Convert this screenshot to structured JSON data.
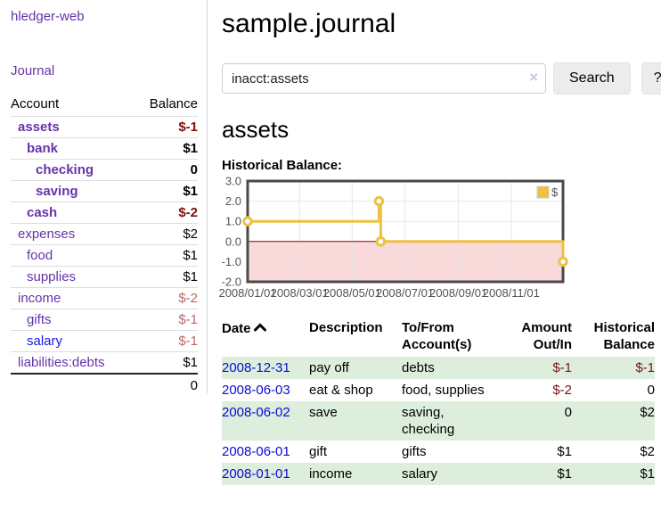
{
  "sidebar": {
    "brand": "hledger-web",
    "nav_journal": "Journal",
    "accounts_table": {
      "headers": {
        "account": "Account",
        "balance": "Balance"
      },
      "rows": [
        {
          "name": "assets",
          "indent": 1,
          "balance": "$-1",
          "bold": true,
          "balance_class": "neg-strong"
        },
        {
          "name": "bank",
          "indent": 2,
          "balance": "$1",
          "bold": true,
          "balance_class": ""
        },
        {
          "name": "checking",
          "indent": 3,
          "balance": "0",
          "bold": true,
          "balance_class": ""
        },
        {
          "name": "saving",
          "indent": 3,
          "balance": "$1",
          "bold": true,
          "balance_class": ""
        },
        {
          "name": "cash",
          "indent": 2,
          "balance": "$-2",
          "bold": true,
          "balance_class": "neg-strong"
        },
        {
          "name": "expenses",
          "indent": 1,
          "balance": "$2",
          "bold": false,
          "balance_class": ""
        },
        {
          "name": "food",
          "indent": 2,
          "balance": "$1",
          "bold": false,
          "balance_class": ""
        },
        {
          "name": "supplies",
          "indent": 2,
          "balance": "$1",
          "bold": false,
          "balance_class": ""
        },
        {
          "name": "income",
          "indent": 1,
          "balance": "$-2",
          "bold": false,
          "balance_class": "neg-faint"
        },
        {
          "name": "gifts",
          "indent": 2,
          "balance": "$-1",
          "bold": false,
          "balance_class": "neg-faint"
        },
        {
          "name": "salary",
          "indent": 2,
          "balance": "$-1",
          "bold": false,
          "balance_class": "neg-faint",
          "link_color": "blue"
        },
        {
          "name": "liabilities:debts",
          "indent": 1,
          "balance": "$1",
          "bold": false,
          "balance_class": ""
        }
      ],
      "total": "0"
    }
  },
  "header": {
    "title": "sample.journal"
  },
  "search": {
    "value": "inacct:assets",
    "clear_icon": "×",
    "button_label": "Search",
    "help_label": "?"
  },
  "account_page": {
    "heading": "assets",
    "chart_label": "Historical Balance:"
  },
  "chart_data": {
    "type": "line",
    "title": "Historical Balance",
    "step": true,
    "series": [
      {
        "name": "$",
        "color": "#edc240",
        "points": [
          [
            "2008-01-01",
            1
          ],
          [
            "2008-06-01",
            2
          ],
          [
            "2008-06-03",
            0
          ],
          [
            "2008-12-31",
            -1
          ]
        ]
      }
    ],
    "xlim": [
      "2008-01-01",
      "2008-12-31"
    ],
    "ylim": [
      -2,
      3
    ],
    "x_ticks": [
      "2008/01/01",
      "2008/03/01",
      "2008/05/01",
      "2008/07/01",
      "2008/09/01",
      "2008/11/01"
    ],
    "y_ticks": [
      "3.0",
      "2.0",
      "1.0",
      "0.0",
      "-1.0",
      "-2.0"
    ],
    "grid": true,
    "legend_position": "top-right",
    "legend": [
      "$"
    ],
    "negative_region_fill": "#f9d9d9",
    "zero_line_color": "#990000",
    "border_color": "#4a4a4a",
    "gridline_color": "#e6e6e6",
    "tick_label_color": "#545454"
  },
  "register": {
    "headers": {
      "date": "Date",
      "description": "Description",
      "tofrom_line1": "To/From",
      "tofrom_line2": "Account(s)",
      "amount_line1": "Amount",
      "amount_line2": "Out/In",
      "balance_line1": "Historical",
      "balance_line2": "Balance"
    },
    "sort": "date-ascending",
    "rows": [
      {
        "date": "2008-12-31",
        "description": "pay off",
        "accounts": "debts",
        "amount": "$-1",
        "amount_neg": true,
        "balance": "$-1",
        "balance_neg": true
      },
      {
        "date": "2008-06-03",
        "description": "eat & shop",
        "accounts": "food, supplies",
        "amount": "$-2",
        "amount_neg": true,
        "balance": "0",
        "balance_neg": false
      },
      {
        "date": "2008-06-02",
        "description": "save",
        "accounts": "saving, checking",
        "amount": "0",
        "amount_neg": false,
        "balance": "$2",
        "balance_neg": false
      },
      {
        "date": "2008-06-01",
        "description": "gift",
        "accounts": "gifts",
        "amount": "$1",
        "amount_neg": false,
        "balance": "$2",
        "balance_neg": false
      },
      {
        "date": "2008-01-01",
        "description": "income",
        "accounts": "salary",
        "amount": "$1",
        "amount_neg": false,
        "balance": "$1",
        "balance_neg": false
      }
    ]
  },
  "colors": {
    "link_purple": "#6633aa",
    "link_blue": "#0a0ad6",
    "negative_strong": "#7f1010",
    "negative_faint": "#b86a6a",
    "row_stripe_green": "#ddeedd",
    "series_gold": "#edc240",
    "negative_region_pink": "#f9d9d9",
    "zero_line_red": "#990000"
  }
}
